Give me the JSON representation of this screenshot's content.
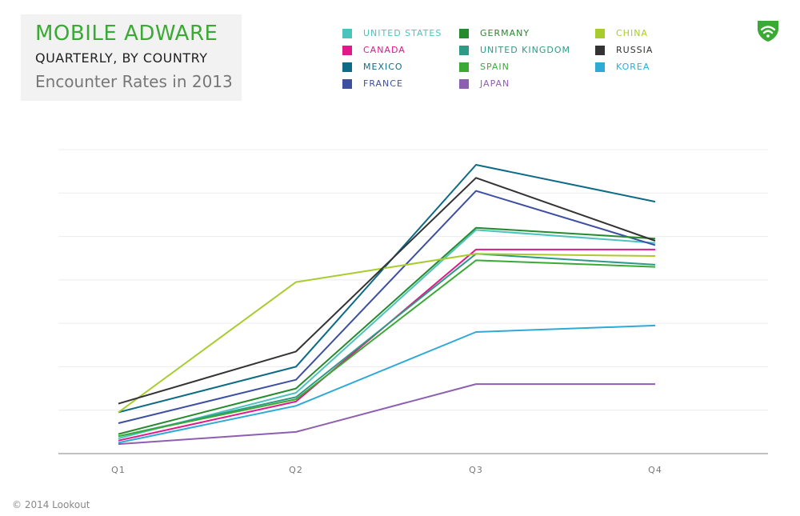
{
  "header": {
    "title": "MOBILE ADWARE",
    "subtitle": "QUARTERLY, BY COUNTRY",
    "caption": "Encounter Rates in 2013"
  },
  "logo": {
    "icon": "lookout-shield-icon",
    "color": "#3aaa35"
  },
  "footer": {
    "copyright": "© 2014 Lookout"
  },
  "chart_data": {
    "type": "line",
    "categories": [
      "Q1",
      "Q2",
      "Q3",
      "Q4"
    ],
    "ylim": [
      0,
      7
    ],
    "grid": true,
    "legend_position": "top",
    "y_tick_labels_shown": false,
    "series": [
      {
        "name": "UNITED STATES",
        "color": "#4cc3bd",
        "values": [
          0.35,
          1.4,
          5.15,
          4.85
        ]
      },
      {
        "name": "CANADA",
        "color": "#e0198a",
        "values": [
          0.3,
          1.2,
          4.7,
          4.7
        ]
      },
      {
        "name": "MEXICO",
        "color": "#0e6b85",
        "values": [
          0.95,
          2.0,
          6.65,
          5.8
        ]
      },
      {
        "name": "FRANCE",
        "color": "#3d4fa0",
        "values": [
          0.7,
          1.7,
          6.05,
          4.8
        ]
      },
      {
        "name": "GERMANY",
        "color": "#268a2e",
        "values": [
          0.45,
          1.5,
          5.2,
          4.95
        ]
      },
      {
        "name": "UNITED KINGDOM",
        "color": "#2e9a85",
        "values": [
          0.4,
          1.3,
          4.6,
          4.35
        ]
      },
      {
        "name": "SPAIN",
        "color": "#3aaa35",
        "values": [
          0.4,
          1.25,
          4.45,
          4.3
        ]
      },
      {
        "name": "JAPAN",
        "color": "#8e5eb0",
        "values": [
          0.22,
          0.5,
          1.6,
          1.6
        ]
      },
      {
        "name": "CHINA",
        "color": "#a8cc2e",
        "values": [
          0.95,
          3.95,
          4.6,
          4.55
        ]
      },
      {
        "name": "RUSSIA",
        "color": "#333333",
        "values": [
          1.15,
          2.35,
          6.35,
          4.9
        ]
      },
      {
        "name": "KOREA",
        "color": "#2eaad6",
        "values": [
          0.25,
          1.1,
          2.8,
          2.95
        ]
      }
    ]
  }
}
